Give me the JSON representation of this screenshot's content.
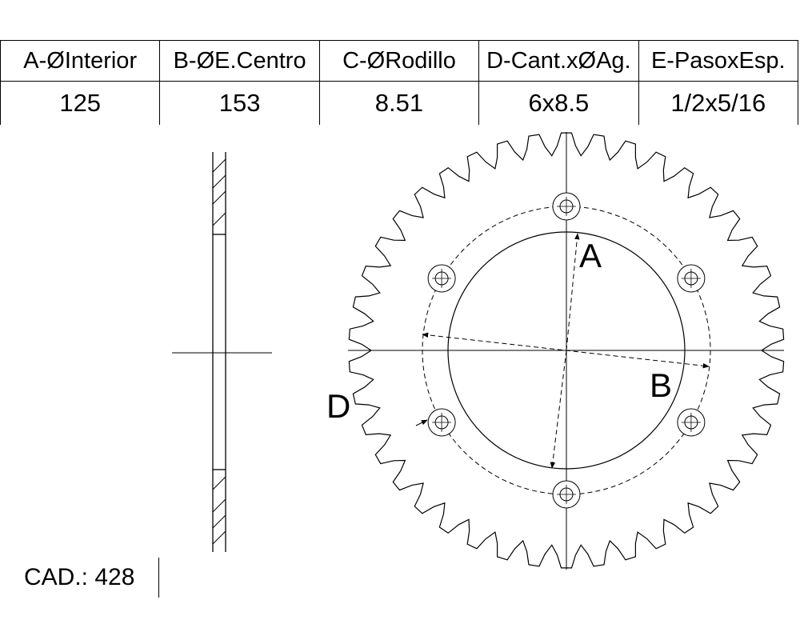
{
  "table": {
    "headers": [
      "A-ØInterior",
      "B-ØE.Centro",
      "C-ØRodillo",
      "D-Cant.xØAg.",
      "E-PasoxEsp."
    ],
    "values": [
      "125",
      "153",
      "8.51",
      "6x8.5",
      "1/2x5/16"
    ]
  },
  "cad": "CAD.: 428",
  "drawing": {
    "teeth": 42,
    "bolt_holes": 6,
    "labels": {
      "a": "A",
      "b": "B",
      "d": "D"
    }
  }
}
